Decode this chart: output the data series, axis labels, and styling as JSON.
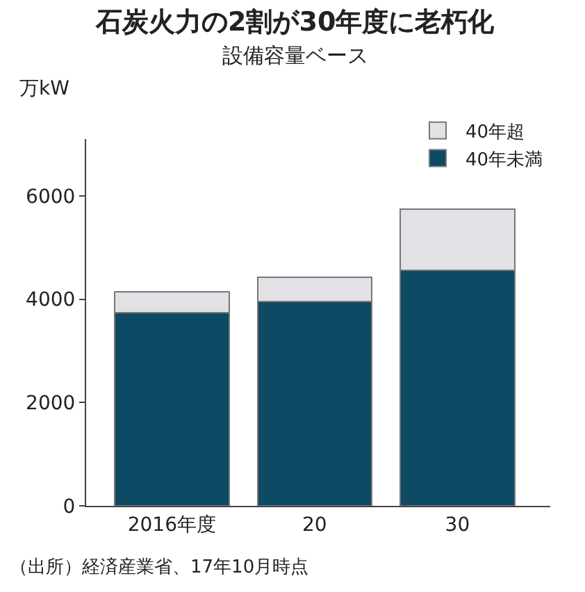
{
  "chart_data": {
    "type": "bar",
    "title": "石炭火力の2割が30年度に老朽化",
    "subtitle": "設備容量ベース",
    "ylabel": "万kW",
    "categories": [
      "2016年度",
      "20",
      "30"
    ],
    "series": [
      {
        "name": "40年未満",
        "color": "#0e4a63",
        "values": [
          3740,
          3960,
          4560
        ]
      },
      {
        "name": "40年超",
        "color": "#e2e2e6",
        "values": [
          400,
          460,
          1180
        ]
      }
    ],
    "stacked": true,
    "ylim": [
      0,
      7100
    ],
    "yticks": [
      0,
      2000,
      4000,
      6000
    ],
    "legend": "top right",
    "annotations": [
      "（出所）経済産業省、17年10月時点"
    ]
  }
}
